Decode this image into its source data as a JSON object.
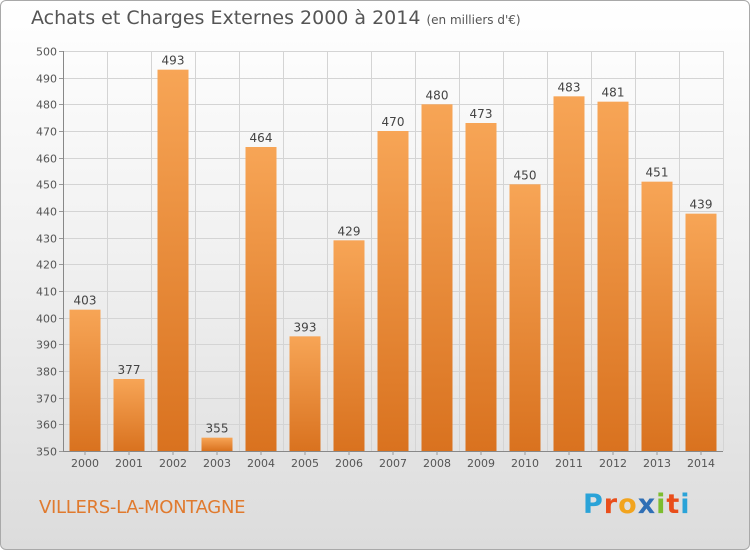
{
  "header": {
    "title": "Achats et Charges Externes 2000 à 2014",
    "subtitle": "(en milliers d'€)"
  },
  "footer": {
    "commune": "VILLERS-LA-MONTAGNE",
    "logo_letters": [
      "P",
      "r",
      "o",
      "x",
      "i",
      "t",
      "i"
    ],
    "logo_colors": [
      "#2aa3d8",
      "#e94e1b",
      "#f2a41e",
      "#2f6fb5",
      "#7dbd2f",
      "#e94e1b",
      "#2aa3d8"
    ]
  },
  "chart_data": {
    "type": "bar",
    "categories": [
      "2000",
      "2001",
      "2002",
      "2003",
      "2004",
      "2005",
      "2006",
      "2007",
      "2008",
      "2009",
      "2010",
      "2011",
      "2012",
      "2013",
      "2014"
    ],
    "values": [
      403,
      377,
      493,
      355,
      464,
      393,
      429,
      470,
      480,
      473,
      450,
      483,
      481,
      451,
      439
    ],
    "value_labels": [
      "403",
      "377",
      "493",
      "355",
      "464",
      "393",
      "429",
      "470",
      "480",
      "473",
      "450",
      "483",
      "481",
      "451",
      "439"
    ],
    "ylim": [
      350,
      500
    ],
    "y_ticks": [
      350,
      360,
      370,
      380,
      390,
      400,
      410,
      420,
      430,
      440,
      450,
      460,
      470,
      480,
      490,
      500
    ],
    "y_tick_labels": [
      "350",
      "360",
      "370",
      "380",
      "390",
      "400",
      "410",
      "420",
      "430",
      "440",
      "450",
      "460",
      "470",
      "480",
      "490",
      "500"
    ],
    "grid": true,
    "bar_color_top": "#f7a556",
    "bar_color_bottom": "#d9721f"
  }
}
